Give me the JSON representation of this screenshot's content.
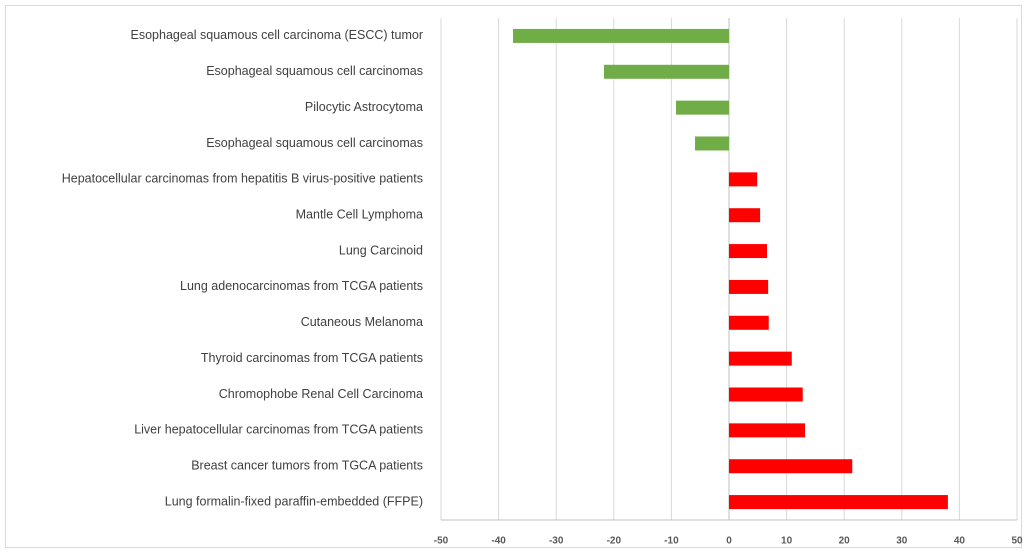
{
  "chart_data": {
    "type": "hbar",
    "categories": [
      "Esophageal squamous cell carcinoma (ESCC) tumor",
      "Esophageal squamous cell carcinomas",
      "Pilocytic Astrocytoma",
      "Esophageal squamous cell carcinomas",
      "Hepatocellular carcinomas from hepatitis B virus-positive patients",
      "Mantle Cell Lymphoma",
      "Lung Carcinoid",
      "Lung adenocarcinomas from TCGA patients",
      "Cutaneous Melanoma",
      "Thyroid carcinomas from TCGA patients",
      "Chromophobe Renal Cell Carcinoma",
      "Liver hepatocellular carcinomas from TCGA patients",
      "Breast cancer tumors from TGCA patients",
      "Lung formalin-fixed paraffin-embedded (FFPE)"
    ],
    "values": [
      -37.5,
      -21.7,
      -9.2,
      -5.9,
      4.9,
      5.4,
      6.6,
      6.8,
      6.9,
      10.9,
      12.8,
      13.2,
      21.4,
      38.0
    ],
    "colors": [
      "#70ad47",
      "#70ad47",
      "#70ad47",
      "#70ad47",
      "#ff0000",
      "#ff0000",
      "#ff0000",
      "#ff0000",
      "#ff0000",
      "#ff0000",
      "#ff0000",
      "#ff0000",
      "#ff0000",
      "#ff0000"
    ],
    "xlim": [
      -50,
      50
    ],
    "xticks": [
      -50,
      -40,
      -30,
      -20,
      -10,
      0,
      10,
      20,
      30,
      40,
      50
    ],
    "grid": true
  }
}
